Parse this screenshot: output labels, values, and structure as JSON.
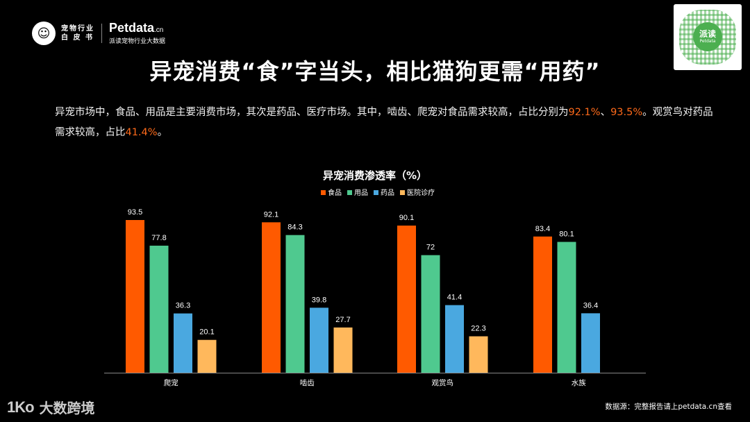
{
  "brand": {
    "logo_icon": "dog-cat-face-icon",
    "cn_line1": "宠物行业",
    "cn_line2": "白 皮 书",
    "en_main": "Petdata",
    "en_suffix": ".cn",
    "en_sub": "派读宠物行业大数据"
  },
  "qr": {
    "center_label": "派读",
    "center_sub": "Petdata"
  },
  "title": "异宠消费“食”字当头，相比猫狗更需“用药”",
  "description": {
    "part1": "异宠市场中，食品、用品是主要消费市场，其次是药品、医疗市场。其中，啮齿、爬宠对食品需求较高，占比分别为",
    "hl1": "92.1%",
    "sep": "、",
    "hl2": "93.5%",
    "part2": "。观赏鸟对药品需求较高，占比",
    "hl3": "41.4%",
    "part3": "。"
  },
  "chart_data": {
    "type": "bar",
    "title": "异宠消费渗透率（%）",
    "categories": [
      "爬宠",
      "啮齿",
      "观赏鸟",
      "水族"
    ],
    "series": [
      {
        "name": "食品",
        "color": "#ff5a00",
        "values": [
          93.5,
          92.1,
          90.1,
          83.4
        ]
      },
      {
        "name": "用品",
        "color": "#4fc98f",
        "values": [
          77.8,
          84.3,
          72,
          80.1
        ]
      },
      {
        "name": "药品",
        "color": "#4aa8e0",
        "values": [
          36.3,
          39.8,
          41.4,
          36.4
        ]
      },
      {
        "name": "医院诊疗",
        "color": "#ffb85c",
        "values": [
          20.1,
          27.7,
          22.3,
          null
        ]
      }
    ],
    "ylim": [
      0,
      100
    ],
    "legend": "top",
    "grid": false
  },
  "footer": {
    "logo_mark": "1Ko",
    "logo_text": "大数跨境",
    "source": "数据源：完整报告请上petdata.cn查看"
  }
}
